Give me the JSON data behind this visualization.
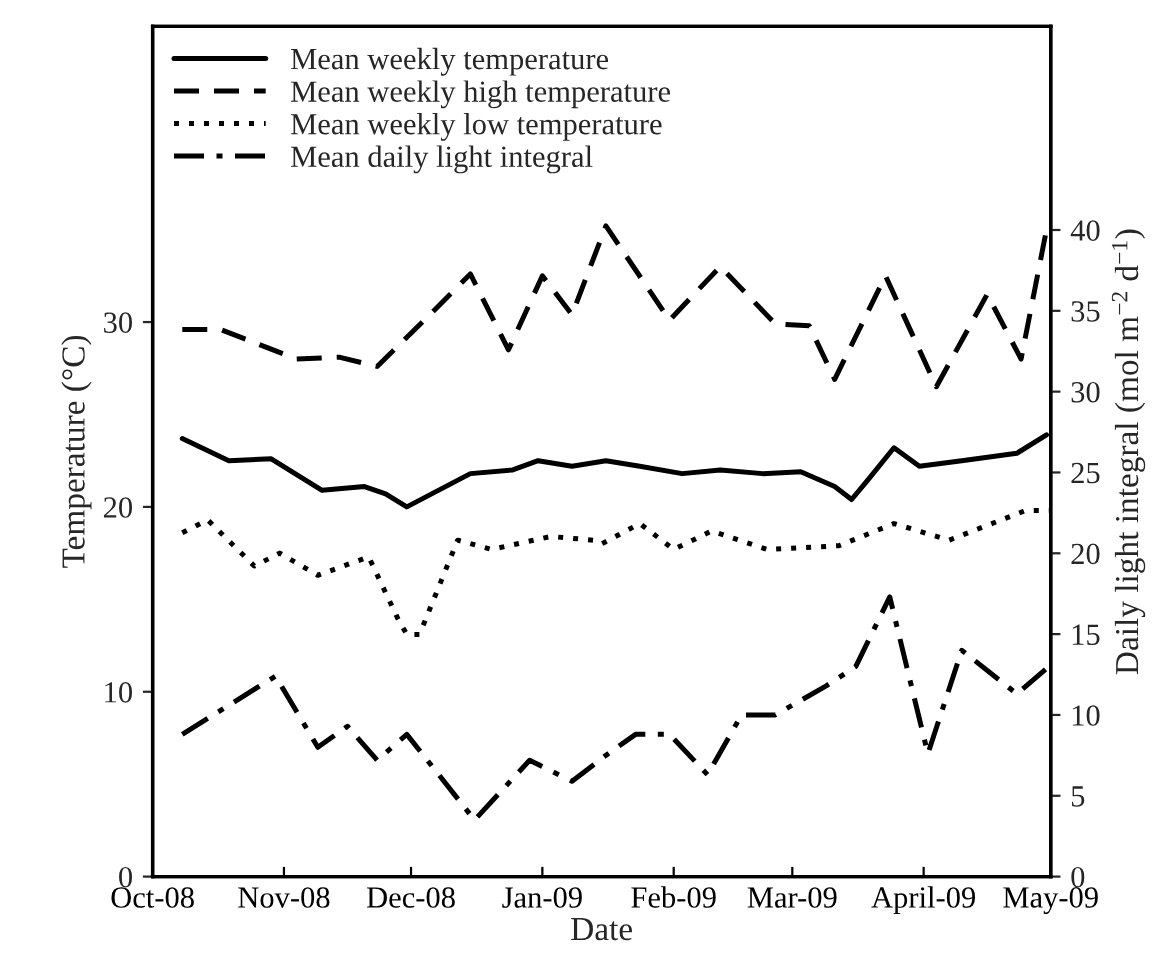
{
  "chart_data": {
    "type": "line",
    "xlabel": "Date",
    "ylabel": "Temperature (°C)",
    "y2label": "Daily light integral (mol m$^{−2}$ d$^{−1}$)",
    "xlim": [
      "2008-10-01",
      "2009-05-01"
    ],
    "xticks": [
      {
        "value": "2008-10-01",
        "label": "Oct-08"
      },
      {
        "value": "2008-11-01",
        "label": "Nov-08"
      },
      {
        "value": "2008-12-01",
        "label": "Dec-08"
      },
      {
        "value": "2009-01-01",
        "label": "Jan-09"
      },
      {
        "value": "2009-02-01",
        "label": "Feb-09"
      },
      {
        "value": "2009-03-01",
        "label": "Mar-09"
      },
      {
        "value": "2009-04-01",
        "label": "April-09"
      },
      {
        "value": "2009-05-01",
        "label": "May-09"
      }
    ],
    "ylim": [
      0,
      46
    ],
    "yticks": [
      0,
      10,
      20,
      30
    ],
    "y2lim": [
      0,
      52.6
    ],
    "y2ticks": [
      0,
      5,
      10,
      15,
      20,
      25,
      30,
      35,
      40
    ],
    "legend": "top left",
    "series": [
      {
        "name": "Mean weekly temperature",
        "color": "#000000",
        "line_style": "solid",
        "x": [
          "2008-10-08",
          "2008-10-19",
          "2008-10-29",
          "2008-11-10",
          "2008-11-20",
          "2008-11-25",
          "2008-11-30",
          "2008-12-15",
          "2008-12-25",
          "2008-12-31",
          "2009-01-08",
          "2009-01-16",
          "2009-01-24",
          "2009-02-03",
          "2009-02-12",
          "2009-02-22",
          "2009-03-03",
          "2009-03-11",
          "2009-03-15",
          "2009-03-19",
          "2009-03-25",
          "2009-03-31",
          "2009-04-10",
          "2009-04-23",
          "2009-04-30"
        ],
        "values": [
          23.7,
          22.5,
          22.6,
          20.9,
          21.1,
          20.7,
          20.0,
          21.8,
          22.0,
          22.5,
          22.2,
          22.5,
          22.2,
          21.8,
          22.0,
          21.8,
          21.9,
          21.1,
          20.4,
          21.5,
          23.2,
          22.2,
          22.5,
          22.9,
          23.9
        ]
      },
      {
        "name": "Mean weekly high temperature",
        "color": "#000000",
        "line_style": "dashed",
        "x": [
          "2008-10-08",
          "2008-10-17",
          "2008-11-04",
          "2008-11-14",
          "2008-11-23",
          "2008-12-05",
          "2008-12-15",
          "2008-12-24",
          "2009-01-01",
          "2009-01-08",
          "2009-01-16",
          "2009-01-31",
          "2009-02-12",
          "2009-02-25",
          "2009-03-05",
          "2009-03-11",
          "2009-03-23",
          "2009-04-04",
          "2009-04-16",
          "2009-04-24",
          "2009-04-30"
        ],
        "values": [
          29.6,
          29.6,
          28.0,
          28.1,
          27.6,
          30.3,
          32.6,
          28.5,
          32.5,
          30.4,
          35.2,
          30.1,
          33.0,
          29.9,
          29.8,
          26.9,
          32.5,
          26.5,
          31.5,
          28.0,
          35.0
        ]
      },
      {
        "name": "Mean weekly low temperature",
        "color": "#000000",
        "line_style": "dotted",
        "x": [
          "2008-10-08",
          "2008-10-14",
          "2008-10-25",
          "2008-10-31",
          "2008-11-09",
          "2008-11-21",
          "2008-11-28",
          "2008-11-30",
          "2008-12-03",
          "2008-12-12",
          "2008-12-20",
          "2009-01-03",
          "2009-01-13",
          "2009-01-15",
          "2009-01-24",
          "2009-02-01",
          "2009-02-10",
          "2009-02-23",
          "2009-03-12",
          "2009-03-25",
          "2009-04-07",
          "2009-04-25",
          "2009-05-01"
        ],
        "values": [
          18.6,
          19.3,
          16.8,
          17.5,
          16.3,
          17.3,
          13.9,
          13.1,
          13.1,
          18.2,
          17.7,
          18.4,
          18.2,
          18.0,
          19.1,
          17.7,
          18.7,
          17.7,
          17.9,
          19.1,
          18.2,
          19.8,
          19.8
        ]
      },
      {
        "name": "Mean daily light integral",
        "color": "#000000",
        "line_style": "dashdot",
        "axis": "y2",
        "x": [
          "2008-10-08",
          "2008-10-30",
          "2008-11-09",
          "2008-11-16",
          "2008-11-23",
          "2008-11-30",
          "2008-12-16",
          "2008-12-29",
          "2009-01-08",
          "2009-01-16",
          "2009-01-23",
          "2009-01-31",
          "2009-02-09",
          "2009-02-17",
          "2009-02-25",
          "2009-03-09",
          "2009-03-16",
          "2009-03-24",
          "2009-04-02",
          "2009-04-10",
          "2009-04-23",
          "2009-05-01"
        ],
        "values": [
          8.8,
          12.4,
          8.0,
          9.3,
          7.2,
          8.8,
          3.5,
          7.2,
          5.9,
          7.5,
          8.8,
          8.8,
          6.3,
          10.0,
          10.0,
          11.8,
          13.0,
          17.3,
          7.6,
          14.0,
          11.3,
          13.1
        ]
      }
    ]
  }
}
